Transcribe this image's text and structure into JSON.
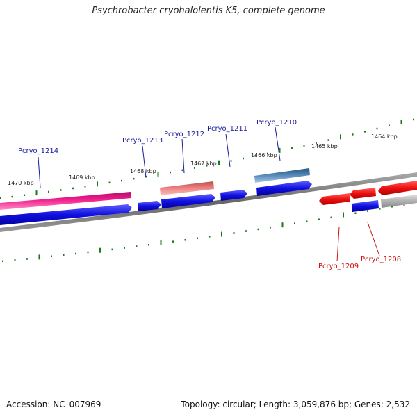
{
  "title": "Psychrobacter cryohalolentis K5, complete genome",
  "footer": {
    "accession": "Accession: NC_007969",
    "topology": "Topology: circular; Length: 3,059,876 bp; Genes: 2,532"
  },
  "scale_labels": [
    "1470 kbp",
    "1469 kbp",
    "1468 kbp",
    "1467 kbp",
    "1466 kbp",
    "1465 kbp",
    "1464 kbp"
  ],
  "gene_labels": {
    "pcryo_1214": "Pcryo_1214",
    "pcryo_1213": "Pcryo_1213",
    "pcryo_1212": "Pcryo_1212",
    "pcryo_1211": "Pcryo_1211",
    "pcryo_1210": "Pcryo_1210",
    "pcryo_1209": "Pcryo_1209",
    "pcryo_1208": "Pcryo_1208"
  },
  "colors": {
    "forward_cds": "#1010e0",
    "reverse_cds": "#ee1010",
    "pink_feature": "#ee1a8a",
    "salmon_feature": "#e87878",
    "steelblue_feature": "#4a7fb0",
    "gray_feature": "#b0b0b0",
    "backbone": "#777777",
    "tick": "#1a7a1a"
  }
}
